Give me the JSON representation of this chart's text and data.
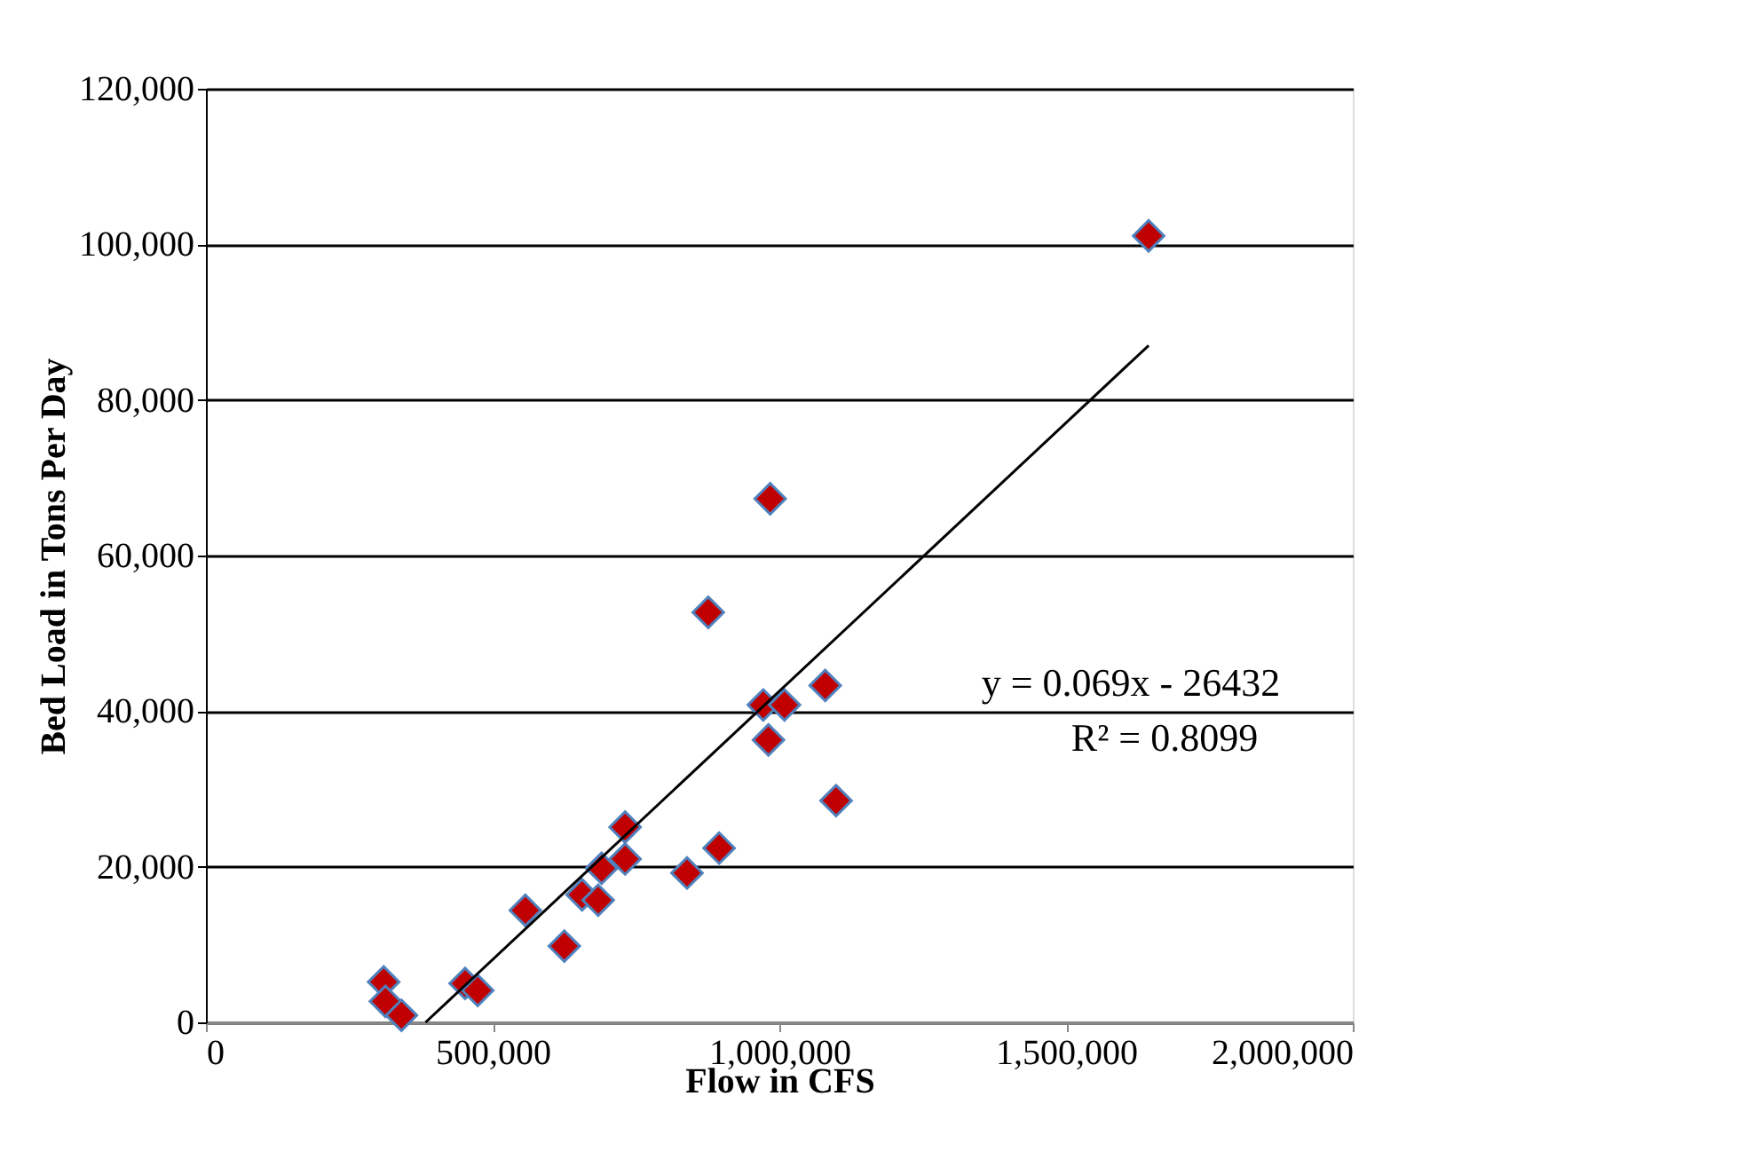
{
  "chart_data": {
    "type": "scatter",
    "xlabel": "Flow in CFS",
    "ylabel": "Bed Load in Tons Per Day",
    "xlim": [
      0,
      2000000
    ],
    "xticks": [
      {
        "value": 0,
        "label": "0"
      },
      {
        "value": 500000,
        "label": "500,000"
      },
      {
        "value": 1000000,
        "label": "1,000,000"
      },
      {
        "value": 1500000,
        "label": "1,500,000"
      },
      {
        "value": 2000000,
        "label": "2,000,000"
      }
    ],
    "ylim": [
      0,
      120000
    ],
    "yticks": [
      {
        "value": 0,
        "label": "0"
      },
      {
        "value": 20000,
        "label": "20,000"
      },
      {
        "value": 40000,
        "label": "40,000"
      },
      {
        "value": 60000,
        "label": "60,000"
      },
      {
        "value": 80000,
        "label": "80,000"
      },
      {
        "value": 100000,
        "label": "100,000"
      },
      {
        "value": 120000,
        "label": "120,000"
      }
    ],
    "grid": "y",
    "marker": "diamond",
    "series": [
      {
        "color": "#c00000",
        "x": [
          310000,
          313000,
          341000,
          452000,
          474000,
          557000,
          625000,
          656000,
          684000,
          690000,
          731000,
          731000,
          839000,
          895000,
          972000,
          1009000,
          981000,
          1080000,
          1099000,
          984000,
          876000,
          1644000
        ],
        "values": [
          5200,
          2700,
          900,
          5000,
          4100,
          14400,
          9800,
          16400,
          15700,
          19800,
          21000,
          25100,
          19200,
          22400,
          40800,
          40800,
          36300,
          43300,
          28500,
          67300,
          52700,
          101100
        ]
      },
      {
        "type": "line",
        "color": "#000000",
        "line_style": "solid",
        "marker": "none",
        "x": [
          383000,
          1644000
        ],
        "values": [
          0,
          87000
        ]
      }
    ],
    "annotations": [
      "y = 0.069x - 26432",
      "R² = 0.8099"
    ]
  }
}
